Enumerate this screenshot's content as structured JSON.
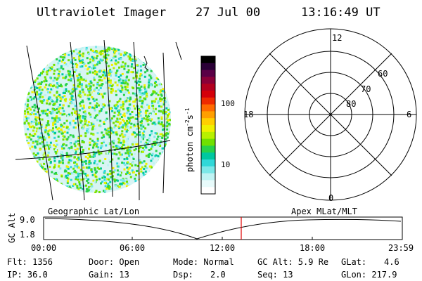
{
  "header": {
    "instrument": "Ultraviolet Imager",
    "date": "27 Jul 00",
    "time": "13:16:49 UT"
  },
  "colorbar": {
    "label": "photon cm",
    "label_sup1": "-2",
    "label_mid": "s",
    "label_sup2": "-1",
    "ticks": [
      "100",
      "10"
    ],
    "colors": [
      "#000000",
      "#2a0036",
      "#5a0046",
      "#8a0038",
      "#b3001f",
      "#d4000a",
      "#ee2a00",
      "#ff6a00",
      "#ff9f00",
      "#ffcf00",
      "#f0f000",
      "#b8f000",
      "#70e000",
      "#28d24a",
      "#00c8a0",
      "#30d8d8",
      "#7ce8e8",
      "#bff3f3",
      "#e8fbfb",
      "#ffffff"
    ]
  },
  "polar": {
    "mlt_labels": {
      "top": "12",
      "left": "18",
      "right": "6",
      "bottom": "0"
    },
    "lat_labels": [
      "60",
      "70",
      "80"
    ]
  },
  "timeline": {
    "left_title": "Geographic Lat/Lon",
    "right_title": "Apex MLat/MLT",
    "axis_label": "GC Alt",
    "y_ticks": [
      "9.0",
      "1.8"
    ],
    "x_ticks": [
      "00:00",
      "06:00",
      "12:00",
      "18:00",
      "23:59"
    ],
    "marker_color": "#e00000"
  },
  "footer": {
    "flt": "Flt: 1356",
    "ip": "IP: 36.0",
    "door": "Door: Open",
    "gain": "Gain: 13",
    "mode": "Mode: Normal",
    "dsp_label": "Dsp:",
    "dsp_value": "2.0",
    "gcalt": "GC Alt: 5.9 Re",
    "seq": "Seq: 13",
    "glat_label": "GLat:",
    "glat_value": "4.6",
    "glon": "GLon: 217.9"
  }
}
